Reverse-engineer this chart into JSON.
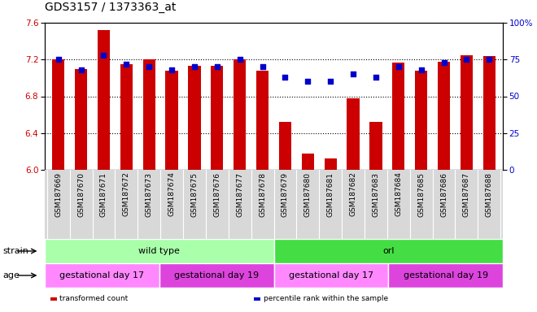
{
  "title": "GDS3157 / 1373363_at",
  "samples": [
    "GSM187669",
    "GSM187670",
    "GSM187671",
    "GSM187672",
    "GSM187673",
    "GSM187674",
    "GSM187675",
    "GSM187676",
    "GSM187677",
    "GSM187678",
    "GSM187679",
    "GSM187680",
    "GSM187681",
    "GSM187682",
    "GSM187683",
    "GSM187684",
    "GSM187685",
    "GSM187686",
    "GSM187687",
    "GSM187688"
  ],
  "bar_values": [
    7.2,
    7.1,
    7.52,
    7.15,
    7.2,
    7.08,
    7.13,
    7.13,
    7.2,
    7.08,
    6.52,
    6.18,
    6.12,
    6.78,
    6.52,
    7.17,
    7.08,
    7.18,
    7.25,
    7.24
  ],
  "percentile_values": [
    75,
    68,
    78,
    72,
    70,
    68,
    70,
    70,
    75,
    70,
    63,
    60,
    60,
    65,
    63,
    70,
    68,
    73,
    75,
    75
  ],
  "ylim_left": [
    6.0,
    7.6
  ],
  "ylim_right": [
    0,
    100
  ],
  "yticks_left": [
    6.0,
    6.4,
    6.8,
    7.2,
    7.6
  ],
  "yticks_right": [
    0,
    25,
    50,
    75,
    100
  ],
  "bar_color": "#cc0000",
  "dot_color": "#0000cc",
  "strain_groups": [
    {
      "label": "wild type",
      "start": 0,
      "end": 9,
      "color": "#aaffaa"
    },
    {
      "label": "orl",
      "start": 10,
      "end": 19,
      "color": "#44dd44"
    }
  ],
  "age_groups": [
    {
      "label": "gestational day 17",
      "start": 0,
      "end": 4,
      "color": "#ff88ff"
    },
    {
      "label": "gestational day 19",
      "start": 5,
      "end": 9,
      "color": "#dd44dd"
    },
    {
      "label": "gestational day 17",
      "start": 10,
      "end": 14,
      "color": "#ff88ff"
    },
    {
      "label": "gestational day 19",
      "start": 15,
      "end": 19,
      "color": "#dd44dd"
    }
  ],
  "legend_items": [
    {
      "label": "transformed count",
      "color": "#cc0000"
    },
    {
      "label": "percentile rank within the sample",
      "color": "#0000cc"
    }
  ],
  "strain_label": "strain",
  "age_label": "age",
  "title_fontsize": 10,
  "tick_fontsize": 6.5,
  "label_fontsize": 8,
  "row_label_fontsize": 8
}
